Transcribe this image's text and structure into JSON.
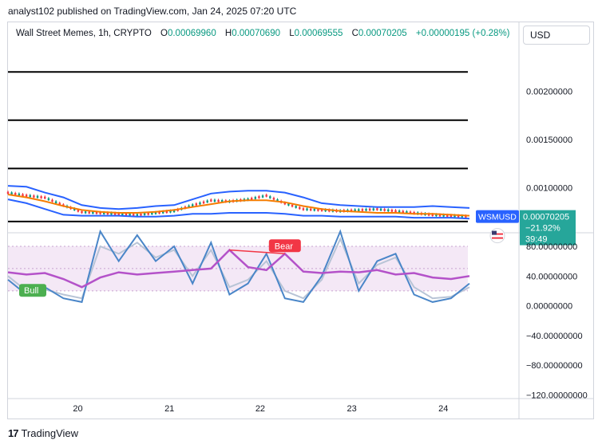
{
  "header": {
    "published_text": "analyst102 published on TradingView.com, Jan 24, 2025 07:20 UTC"
  },
  "legend": {
    "symbol_text": "Wall Street Memes, 1h, CRYPTO",
    "open_label": "O",
    "open_value": "0.00069960",
    "high_label": "H",
    "high_value": "0.00070690",
    "low_label": "L",
    "low_value": "0.00069555",
    "close_label": "C",
    "close_value": "0.00070205",
    "change_value": "+0.00000195 (+0.28%)"
  },
  "currency_button": {
    "label": "USD"
  },
  "price_axis": {
    "ticks": [
      "0.00200000",
      "0.00150000",
      "0.00100000"
    ],
    "current_symbol": "WSMUSD",
    "current_price": "0.00070205",
    "current_change": "−21.92%",
    "countdown": "39:49"
  },
  "oscillator_axis": {
    "ticks": [
      "80.00000000",
      "40.00000000",
      "0.00000000",
      "−40.00000000",
      "−80.00000000",
      "−120.00000000"
    ]
  },
  "time_axis": {
    "ticks": [
      "20",
      "21",
      "22",
      "23",
      "24"
    ]
  },
  "signals": {
    "bull_label": "Bull",
    "bear_label": "Bear"
  },
  "footer": {
    "brand": "TradingView",
    "logo_glyph": "17"
  },
  "colors": {
    "up": "#089981",
    "down": "#f23645",
    "band": "#2962ff",
    "mid": "#f57c00",
    "rsi": "#b452c9",
    "stoch_k": "#4a86c8"
  },
  "chart_data": [
    {
      "type": "line",
      "title": "Wall Street Memes, 1h, CRYPTO",
      "x_ticks": [
        "20",
        "21",
        "22",
        "23",
        "24"
      ],
      "y_ticks": [
        0.002,
        0.0015,
        0.001
      ],
      "ylim": [
        0.00055,
        0.00245
      ],
      "horizontal_levels": [
        0.0022,
        0.0017,
        0.0012,
        0.00065
      ],
      "series": [
        {
          "name": "Upper band",
          "x": [
            0,
            5,
            10,
            15,
            20,
            25,
            30,
            35,
            40,
            45,
            50,
            55,
            60,
            65,
            70,
            75,
            80,
            85,
            90,
            95,
            100,
            105,
            110,
            115,
            120,
            125
          ],
          "values": [
            0.00102,
            0.00101,
            0.00095,
            0.0009,
            0.00082,
            0.00079,
            0.00078,
            0.00079,
            0.00081,
            0.00082,
            0.00088,
            0.00094,
            0.00096,
            0.00097,
            0.00097,
            0.00095,
            0.0009,
            0.00084,
            0.00082,
            0.00081,
            0.0008,
            0.0008,
            0.0008,
            0.00081,
            0.0008,
            0.00079
          ]
        },
        {
          "name": "Middle band",
          "x": [
            0,
            5,
            10,
            15,
            20,
            25,
            30,
            35,
            40,
            45,
            50,
            55,
            60,
            65,
            70,
            75,
            80,
            85,
            90,
            95,
            100,
            105,
            110,
            115,
            120,
            125
          ],
          "values": [
            0.00093,
            0.0009,
            0.00086,
            0.00081,
            0.00077,
            0.00075,
            0.00074,
            0.00074,
            0.00075,
            0.00077,
            0.0008,
            0.00083,
            0.00086,
            0.00087,
            0.00087,
            0.00085,
            0.00081,
            0.00078,
            0.00076,
            0.00075,
            0.00074,
            0.00074,
            0.00073,
            0.00073,
            0.00072,
            0.00071
          ]
        },
        {
          "name": "Lower band",
          "x": [
            0,
            5,
            10,
            15,
            20,
            25,
            30,
            35,
            40,
            45,
            50,
            55,
            60,
            65,
            70,
            75,
            80,
            85,
            90,
            95,
            100,
            105,
            110,
            115,
            120,
            125
          ],
          "values": [
            0.00088,
            0.00084,
            0.00078,
            0.00072,
            0.00071,
            0.00071,
            0.00071,
            0.0007,
            0.0007,
            0.00071,
            0.00073,
            0.00073,
            0.00074,
            0.00074,
            0.00074,
            0.00073,
            0.00071,
            0.00071,
            0.0007,
            0.0007,
            0.0007,
            0.0007,
            0.00069,
            0.00069,
            0.00069,
            0.00068
          ]
        },
        {
          "name": "Price",
          "x": [
            0,
            5,
            10,
            15,
            20,
            25,
            30,
            35,
            40,
            45,
            50,
            55,
            60,
            65,
            70,
            75,
            80,
            85,
            90,
            95,
            100,
            105,
            110,
            115,
            120,
            125
          ],
          "values": [
            0.00095,
            0.00092,
            0.0009,
            0.00082,
            0.00075,
            0.00074,
            0.00073,
            0.00072,
            0.00074,
            0.00076,
            0.00082,
            0.00087,
            0.00086,
            0.00088,
            0.00092,
            0.00084,
            0.00078,
            0.00077,
            0.00076,
            0.00077,
            0.00078,
            0.00076,
            0.00074,
            0.00072,
            0.00071,
            0.00070205
          ]
        }
      ]
    },
    {
      "type": "line",
      "y_ticks": [
        80,
        40,
        0,
        -40,
        -80,
        -120
      ],
      "ylim": [
        -125,
        95
      ],
      "bands": [
        20,
        80
      ],
      "series": [
        {
          "name": "RSI",
          "x": [
            0,
            5,
            10,
            15,
            20,
            25,
            30,
            35,
            40,
            45,
            50,
            55,
            60,
            65,
            70,
            75,
            80,
            85,
            90,
            95,
            100,
            105,
            110,
            115,
            120,
            125
          ],
          "values": [
            45,
            42,
            44,
            36,
            25,
            38,
            45,
            42,
            44,
            46,
            48,
            50,
            75,
            52,
            48,
            70,
            46,
            44,
            46,
            45,
            48,
            42,
            44,
            38,
            36,
            40
          ]
        },
        {
          "name": "Stoch %K",
          "x": [
            0,
            5,
            10,
            15,
            20,
            25,
            30,
            35,
            40,
            45,
            50,
            55,
            60,
            65,
            70,
            75,
            80,
            85,
            90,
            95,
            100,
            105,
            110,
            115,
            120,
            125
          ],
          "values": [
            35,
            15,
            25,
            10,
            5,
            100,
            60,
            95,
            60,
            80,
            30,
            85,
            15,
            30,
            70,
            10,
            5,
            40,
            100,
            20,
            60,
            70,
            15,
            5,
            10,
            30
          ]
        },
        {
          "name": "Stoch %D",
          "x": [
            0,
            5,
            10,
            15,
            20,
            25,
            30,
            35,
            40,
            45,
            50,
            55,
            60,
            65,
            70,
            75,
            80,
            85,
            90,
            95,
            100,
            105,
            110,
            115,
            120,
            125
          ],
          "values": [
            40,
            20,
            22,
            15,
            10,
            80,
            70,
            85,
            65,
            75,
            40,
            75,
            25,
            35,
            60,
            20,
            10,
            35,
            90,
            30,
            55,
            65,
            25,
            10,
            12,
            25
          ]
        }
      ]
    }
  ]
}
